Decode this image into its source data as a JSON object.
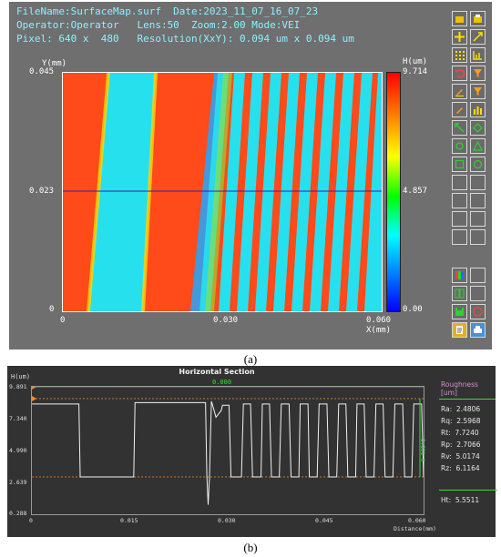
{
  "panel_a": {
    "header": {
      "line1": "FileName:SurfaceMap.surf  Date:2023_11_07_16_07_23",
      "line2": "Operator:Operator   Lens:50  Zoom:2.00 Mode:VEI",
      "line3": "Pixel: 640 x  480   Resolution(XxY): 0.094 um x 0.094 um"
    },
    "y_axis_label": "Y(mm)",
    "x_axis_label": "X(mm)",
    "y_ticks": [
      "0.045",
      "0.023",
      "0"
    ],
    "x_ticks": [
      "0",
      "0.030",
      "0.060"
    ],
    "colorbar": {
      "label": "H(um)",
      "ticks": [
        "9.714",
        "4.857",
        "0.00"
      ]
    },
    "colors": {
      "high": "#ff4a1a",
      "low": "#27e0ee",
      "panel_bg": "#6f6f6f"
    },
    "toolbar_icons": [
      "open-folder-icon",
      "save-folder-icon",
      "crosshair-plus-icon",
      "expand-arrows-icon",
      "grid-dots-icon",
      "stats-icon",
      "undo-arrow-icon",
      "filter-funnel-icon",
      "pencil-icon",
      "filter-funnel-2-icon",
      "pencil-2-icon",
      "bar-chart-icon",
      "diagonal-arrow-icon",
      "diamond-icon",
      "rotate-icon",
      "triangle-icon",
      "square-outline-icon",
      "circle-outline-icon",
      "blank-1-icon",
      "blank-2-icon",
      "blank-3-icon",
      "blank-4-icon",
      "blank-5-icon",
      "blank-6-icon",
      "blank-7-icon",
      "blank-8-icon",
      "palette-icon",
      "blank-9-icon",
      "profile-icon",
      "blank-10-icon",
      "disk-icon",
      "help-icon",
      "report-icon",
      "print-icon"
    ],
    "caption": "(a)"
  },
  "panel_b": {
    "title": "Horizontal Section",
    "y_axis_label": "H(um)",
    "selection_value": "0.000",
    "y_ticks": [
      "9.891",
      "7.340",
      "4.990",
      "2.639",
      "0.288"
    ],
    "x_ticks": [
      "0",
      "0.015",
      "0.030",
      "0.045",
      "0.060"
    ],
    "x_axis_label": "Distance(mm)",
    "ht_side_label": "5.551 H",
    "roughness": {
      "title": "Roughness [um]",
      "rows": [
        "Ra:  2.4806",
        "Rq:  2.5968",
        "Rt:  7.7240",
        "Rp:  2.7066",
        "Rv:  5.0174",
        "Rz:  6.1164"
      ],
      "ht": "Ht:  5.5511"
    },
    "colors": {
      "profile": "#f2f2f2",
      "marker": "#ff8c2a",
      "accent": "#3ddc3d",
      "bg": "#323232"
    },
    "caption": "(b)"
  },
  "chart_data": {
    "type": "line",
    "title": "Horizontal Section",
    "xlabel": "Distance(mm)",
    "ylabel": "H(um)",
    "xlim": [
      0,
      0.06
    ],
    "ylim": [
      0.288,
      9.891
    ],
    "x": [
      0,
      0.0072,
      0.0074,
      0.0156,
      0.0158,
      0.0266,
      0.0268,
      0.027,
      0.0272,
      0.0275,
      0.0278,
      0.0282,
      0.029,
      0.0292,
      0.0302,
      0.0305,
      0.0321,
      0.0324,
      0.0335,
      0.0338,
      0.0351,
      0.0353,
      0.0364,
      0.0367,
      0.0379,
      0.0382,
      0.0394,
      0.0397,
      0.0409,
      0.0411,
      0.0423,
      0.0425,
      0.0437,
      0.044,
      0.0452,
      0.0455,
      0.0467,
      0.047,
      0.0481,
      0.0484,
      0.0496,
      0.0498,
      0.0509,
      0.0512,
      0.0524,
      0.0527,
      0.0538,
      0.0541,
      0.0553,
      0.0556,
      0.0568,
      0.0571,
      0.0582,
      0.0585,
      0.0597,
      0.06
    ],
    "series": [
      {
        "values": [
          8.6,
          8.6,
          3.1,
          3.1,
          8.7,
          8.7,
          3.2,
          1.0,
          3.0,
          8.8,
          8.3,
          7.6,
          8.1,
          8.5,
          8.5,
          3.1,
          3.1,
          8.6,
          8.6,
          3.1,
          3.1,
          8.6,
          8.6,
          3.1,
          3.1,
          8.6,
          8.6,
          3.1,
          3.1,
          8.6,
          8.6,
          3.1,
          3.1,
          8.6,
          8.6,
          3.1,
          3.1,
          8.6,
          8.6,
          3.1,
          3.1,
          8.6,
          8.6,
          3.1,
          3.1,
          8.6,
          8.6,
          3.1,
          3.1,
          8.6,
          8.6,
          3.1,
          3.1,
          8.6,
          8.6,
          3.1
        ]
      }
    ],
    "reference_lines": {
      "upper": 9.0,
      "lower": 3.1
    },
    "grid": false
  }
}
